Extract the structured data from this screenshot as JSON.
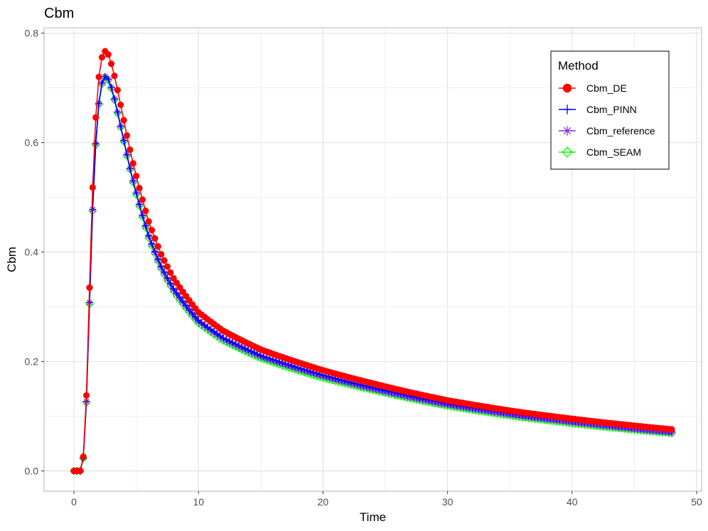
{
  "chart_data": {
    "type": "line",
    "title": "Cbm",
    "xlabel": "Time",
    "ylabel": "Cbm",
    "xlim": [
      -2.4,
      50.4
    ],
    "ylim": [
      -0.037,
      0.81
    ],
    "x_ticks": [
      0,
      10,
      20,
      30,
      40,
      50
    ],
    "x_tick_labels": [
      "0",
      "10",
      "20",
      "30",
      "40",
      "50"
    ],
    "y_ticks": [
      0.0,
      0.2,
      0.4,
      0.6,
      0.8
    ],
    "y_tick_labels": [
      "0.0",
      "0.2",
      "0.4",
      "0.6",
      "0.8"
    ],
    "grid": true,
    "legend": {
      "title": "Method",
      "position": "top-right",
      "entries": [
        "Cbm_DE",
        "Cbm_PINN",
        "Cbm_reference",
        "Cbm_SEAM"
      ]
    },
    "series": [
      {
        "name": "Cbm_DE",
        "color": "#ff0000",
        "marker": "circle",
        "x_start": 0,
        "x_end": 48,
        "x_step": 0.25,
        "shape_points": [
          [
            0,
            0.0
          ],
          [
            0.25,
            0.0
          ],
          [
            0.5,
            0.0
          ],
          [
            0.75,
            0.026
          ],
          [
            1.0,
            0.138
          ],
          [
            1.25,
            0.335
          ],
          [
            1.5,
            0.518
          ],
          [
            1.75,
            0.646
          ],
          [
            2.0,
            0.72
          ],
          [
            2.25,
            0.756
          ],
          [
            2.5,
            0.767
          ],
          [
            2.75,
            0.761
          ],
          [
            3.0,
            0.744
          ],
          [
            3.25,
            0.722
          ],
          [
            3.5,
            0.696
          ],
          [
            3.75,
            0.669
          ],
          [
            4.0,
            0.641
          ],
          [
            4.25,
            0.613
          ],
          [
            4.5,
            0.587
          ],
          [
            4.75,
            0.562
          ],
          [
            5.0,
            0.539
          ],
          [
            6,
            0.456
          ],
          [
            7,
            0.396
          ],
          [
            8,
            0.352
          ],
          [
            10,
            0.29
          ],
          [
            12,
            0.256
          ],
          [
            15,
            0.222
          ],
          [
            20,
            0.184
          ],
          [
            24,
            0.16
          ],
          [
            30,
            0.129
          ],
          [
            36,
            0.107
          ],
          [
            42,
            0.09
          ],
          [
            48,
            0.076
          ]
        ]
      },
      {
        "name": "Cbm_PINN",
        "color": "#0000ff",
        "marker": "plus",
        "x_start": 0,
        "x_end": 48,
        "x_step": 0.25,
        "shape_points": [
          [
            0,
            0.0
          ],
          [
            0.25,
            0.0
          ],
          [
            0.5,
            0.0
          ],
          [
            0.75,
            0.024
          ],
          [
            1.0,
            0.127
          ],
          [
            1.25,
            0.308
          ],
          [
            1.5,
            0.478
          ],
          [
            1.75,
            0.598
          ],
          [
            2.0,
            0.672
          ],
          [
            2.25,
            0.709
          ],
          [
            2.5,
            0.721
          ],
          [
            2.75,
            0.716
          ],
          [
            3.0,
            0.701
          ],
          [
            3.25,
            0.68
          ],
          [
            3.5,
            0.656
          ],
          [
            3.75,
            0.63
          ],
          [
            4.0,
            0.604
          ],
          [
            4.25,
            0.578
          ],
          [
            4.5,
            0.553
          ],
          [
            4.75,
            0.53
          ],
          [
            5.0,
            0.508
          ],
          [
            6,
            0.43
          ],
          [
            7,
            0.374
          ],
          [
            8,
            0.333
          ],
          [
            10,
            0.275
          ],
          [
            12,
            0.243
          ],
          [
            15,
            0.211
          ],
          [
            20,
            0.175
          ],
          [
            24,
            0.152
          ],
          [
            30,
            0.123
          ],
          [
            36,
            0.102
          ],
          [
            42,
            0.086
          ],
          [
            48,
            0.072
          ]
        ]
      },
      {
        "name": "Cbm_reference",
        "color": "#8a2be2",
        "marker": "asterisk",
        "x_start": 0,
        "x_end": 48,
        "x_step": 0.25,
        "shape_points": [
          [
            0,
            0.0
          ],
          [
            0.25,
            0.0
          ],
          [
            0.5,
            0.0
          ],
          [
            0.75,
            0.024
          ],
          [
            1.0,
            0.127
          ],
          [
            1.25,
            0.308
          ],
          [
            1.5,
            0.478
          ],
          [
            1.75,
            0.598
          ],
          [
            2.0,
            0.672
          ],
          [
            2.25,
            0.709
          ],
          [
            2.5,
            0.721
          ],
          [
            2.75,
            0.716
          ],
          [
            3.0,
            0.701
          ],
          [
            3.25,
            0.68
          ],
          [
            3.5,
            0.656
          ],
          [
            3.75,
            0.63
          ],
          [
            4.0,
            0.604
          ],
          [
            4.25,
            0.578
          ],
          [
            4.5,
            0.553
          ],
          [
            4.75,
            0.53
          ],
          [
            5.0,
            0.508
          ],
          [
            6,
            0.429
          ],
          [
            7,
            0.372
          ],
          [
            8,
            0.331
          ],
          [
            10,
            0.273
          ],
          [
            12,
            0.241
          ],
          [
            15,
            0.209
          ],
          [
            20,
            0.173
          ],
          [
            24,
            0.15
          ],
          [
            30,
            0.121
          ],
          [
            36,
            0.1
          ],
          [
            42,
            0.084
          ],
          [
            48,
            0.07
          ]
        ]
      },
      {
        "name": "Cbm_SEAM",
        "color": "#00ff00",
        "marker": "diamond",
        "x_start": 0,
        "x_end": 48,
        "x_step": 0.25,
        "shape_points": [
          [
            0,
            0.0
          ],
          [
            0.25,
            0.0
          ],
          [
            0.5,
            0.0
          ],
          [
            0.75,
            0.023
          ],
          [
            1.0,
            0.125
          ],
          [
            1.25,
            0.305
          ],
          [
            1.5,
            0.475
          ],
          [
            1.75,
            0.596
          ],
          [
            2.0,
            0.67
          ],
          [
            2.25,
            0.707
          ],
          [
            2.5,
            0.719
          ],
          [
            2.75,
            0.714
          ],
          [
            3.0,
            0.699
          ],
          [
            3.25,
            0.678
          ],
          [
            3.5,
            0.654
          ],
          [
            3.75,
            0.628
          ],
          [
            4.0,
            0.602
          ],
          [
            4.25,
            0.576
          ],
          [
            4.5,
            0.551
          ],
          [
            4.75,
            0.527
          ],
          [
            5.0,
            0.505
          ],
          [
            6,
            0.426
          ],
          [
            7,
            0.37
          ],
          [
            8,
            0.328
          ],
          [
            10,
            0.27
          ],
          [
            12,
            0.238
          ],
          [
            15,
            0.206
          ],
          [
            20,
            0.17
          ],
          [
            24,
            0.148
          ],
          [
            30,
            0.119
          ],
          [
            36,
            0.098
          ],
          [
            42,
            0.082
          ],
          [
            48,
            0.069
          ]
        ]
      }
    ]
  }
}
